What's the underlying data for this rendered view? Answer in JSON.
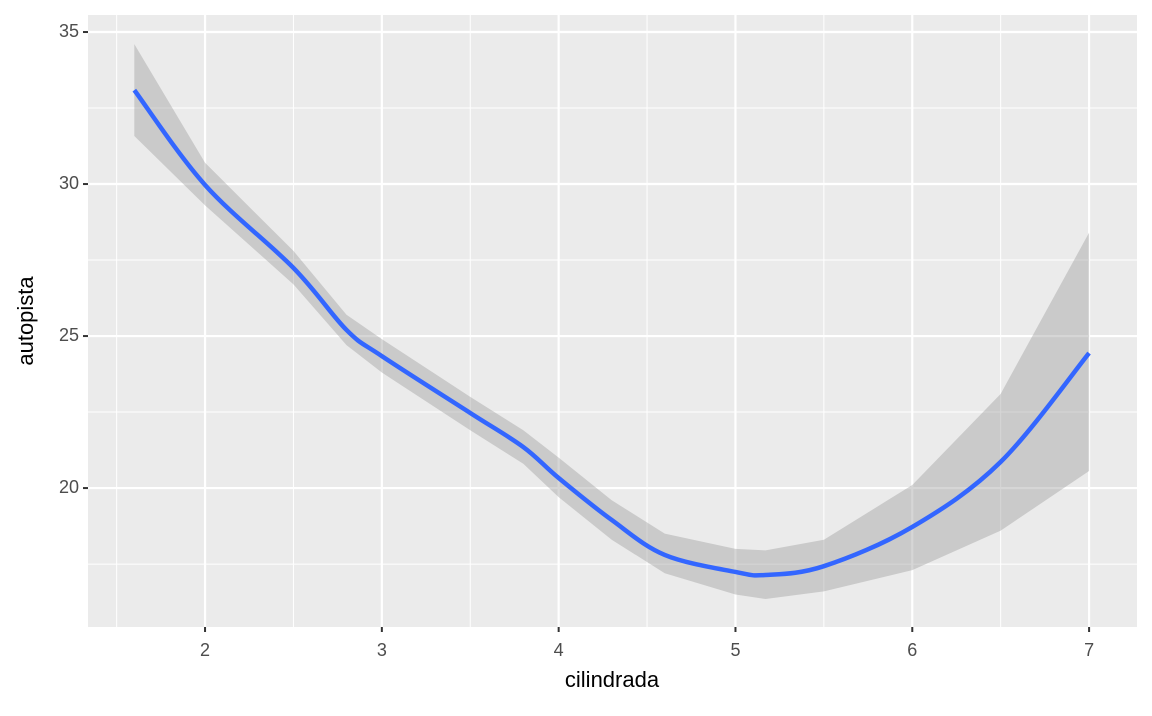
{
  "chart_data": {
    "type": "smooth",
    "x_label": "cilindrada",
    "y_label": "autopista",
    "x": [
      1.6,
      2.0,
      2.5,
      2.8,
      3.0,
      3.5,
      3.8,
      4.0,
      4.3,
      4.6,
      5.0,
      5.17,
      5.5,
      6.0,
      6.5,
      7.0
    ],
    "values": [
      33.09,
      29.97,
      27.24,
      25.2,
      24.34,
      22.47,
      21.35,
      20.33,
      18.95,
      17.8,
      17.24,
      17.14,
      17.43,
      18.72,
      20.86,
      24.44
    ],
    "lower": [
      31.58,
      29.3,
      26.7,
      24.7,
      23.8,
      21.9,
      20.8,
      19.7,
      18.3,
      17.2,
      16.5,
      16.35,
      16.6,
      17.3,
      18.6,
      20.56
    ],
    "upper": [
      34.6,
      30.7,
      27.8,
      25.7,
      24.9,
      23.0,
      21.9,
      21.0,
      19.6,
      18.5,
      18.0,
      17.95,
      18.3,
      20.1,
      23.1,
      28.4
    ],
    "color": "#3366ff",
    "band_color": "#999999",
    "xlim": [
      1.338,
      7.271
    ],
    "ylim": [
      15.43,
      35.56
    ],
    "xticks": [
      2,
      3,
      4,
      5,
      6,
      7
    ],
    "yticks": [
      20,
      25,
      30,
      35
    ],
    "x_minor_ticks": [
      1.5,
      2.5,
      3.5,
      4.5,
      5.5,
      6.5
    ],
    "y_minor_ticks": [
      17.5,
      22.5,
      27.5,
      32.5
    ],
    "grid": true
  }
}
